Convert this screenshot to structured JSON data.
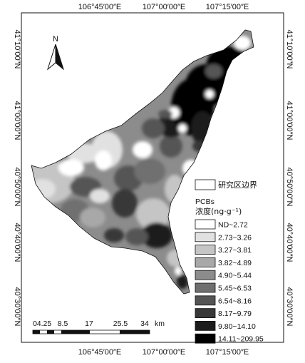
{
  "coords": {
    "top": [
      "106°45′00″E",
      "107°00′00″E",
      "107°15′00″E"
    ],
    "bottom": [
      "106°45′00″E",
      "107°00′00″E",
      "107°15′00″E"
    ],
    "left": [
      "41°10′00″N",
      "41°00′00″N",
      "40°50′00″N",
      "40°40′00″N",
      "40°30′00″N"
    ],
    "right": [
      "41°10′00″N",
      "41°00′00″N",
      "40°50′00″N",
      "40°40′00″N",
      "40°30′00″N"
    ]
  },
  "north_label": "N",
  "legend": {
    "boundary_label": "研究区边界",
    "title_line1": "PCBs",
    "title_line2": "浓度(ng·g⁻¹)",
    "classes": [
      {
        "label": "ND~2.72",
        "color": "#ffffff"
      },
      {
        "label": "2.73~3.26",
        "color": "#e1e1e1"
      },
      {
        "label": "3.27~3.81",
        "color": "#c5c5c5"
      },
      {
        "label": "3.82~4.89",
        "color": "#a8a8a8"
      },
      {
        "label": "4.90~5.44",
        "color": "#8c8c8c"
      },
      {
        "label": "5.45~6.53",
        "color": "#6f6f6f"
      },
      {
        "label": "6.54~8.16",
        "color": "#545454"
      },
      {
        "label": "8.17~9.79",
        "color": "#383838"
      },
      {
        "label": "9.80~14.10",
        "color": "#1c1c1c"
      },
      {
        "label": "14.11~209.95",
        "color": "#000000"
      }
    ]
  },
  "scale": {
    "ticks": [
      "0",
      "4.25",
      "8.5",
      "17",
      "25.5",
      "34"
    ],
    "unit": "km"
  }
}
